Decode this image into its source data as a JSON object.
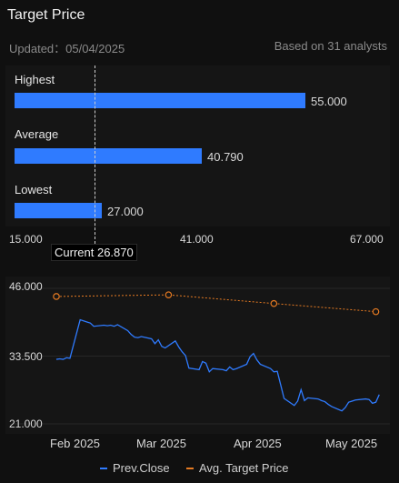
{
  "header": {
    "title": "Target Price",
    "updated": "Updated：05/04/2025",
    "analysts": "Based on 31 analysts"
  },
  "targets": {
    "highest": {
      "label": "Highest",
      "value": "55.000"
    },
    "average": {
      "label": "Average",
      "value": "40.790"
    },
    "lowest": {
      "label": "Lowest",
      "value": "27.000"
    },
    "scale_ticks": [
      "15.000",
      "41.000",
      "67.000"
    ],
    "current_label": "Current 26.870"
  },
  "chart_data": {
    "type": "line",
    "x_ticks": [
      "Feb 2025",
      "Mar 2025",
      "Apr 2025",
      "May 2025"
    ],
    "y_ticks": [
      "46.000",
      "33.500",
      "21.000"
    ],
    "ylim": [
      21,
      46
    ],
    "series": [
      {
        "name": "Prev.Close",
        "color": "#2f7bff",
        "points": [
          [
            "2025-01-27",
            32.9
          ],
          [
            "2025-01-28",
            33.0
          ],
          [
            "2025-01-29",
            32.9
          ],
          [
            "2025-01-30",
            33.2
          ],
          [
            "2025-01-31",
            33.1
          ],
          [
            "2025-02-03",
            40.2
          ],
          [
            "2025-02-04",
            40.0
          ],
          [
            "2025-02-05",
            39.8
          ],
          [
            "2025-02-06",
            39.6
          ],
          [
            "2025-02-07",
            39.0
          ],
          [
            "2025-02-10",
            39.2
          ],
          [
            "2025-02-11",
            39.1
          ],
          [
            "2025-02-12",
            39.2
          ],
          [
            "2025-02-13",
            39.0
          ],
          [
            "2025-02-14",
            39.3
          ],
          [
            "2025-02-17",
            38.2
          ],
          [
            "2025-02-18",
            37.5
          ],
          [
            "2025-02-19",
            37.0
          ],
          [
            "2025-02-20",
            36.9
          ],
          [
            "2025-02-21",
            37.1
          ],
          [
            "2025-02-24",
            36.7
          ],
          [
            "2025-02-25",
            35.8
          ],
          [
            "2025-02-26",
            36.5
          ],
          [
            "2025-02-27",
            35.3
          ],
          [
            "2025-02-28",
            35.0
          ],
          [
            "2025-03-03",
            36.3
          ],
          [
            "2025-03-04",
            35.2
          ],
          [
            "2025-03-05",
            34.3
          ],
          [
            "2025-03-06",
            33.6
          ],
          [
            "2025-03-07",
            31.3
          ],
          [
            "2025-03-10",
            31.0
          ],
          [
            "2025-03-11",
            32.5
          ],
          [
            "2025-03-12",
            32.2
          ],
          [
            "2025-03-13",
            30.6
          ],
          [
            "2025-03-14",
            31.2
          ],
          [
            "2025-03-17",
            31.0
          ],
          [
            "2025-03-18",
            30.8
          ],
          [
            "2025-03-19",
            31.5
          ],
          [
            "2025-03-20",
            31.0
          ],
          [
            "2025-03-21",
            31.2
          ],
          [
            "2025-03-24",
            32.0
          ],
          [
            "2025-03-25",
            33.4
          ],
          [
            "2025-03-26",
            34.0
          ],
          [
            "2025-03-27",
            32.8
          ],
          [
            "2025-03-28",
            32.0
          ],
          [
            "2025-03-31",
            31.2
          ],
          [
            "2025-04-01",
            30.6
          ],
          [
            "2025-04-02",
            30.7
          ],
          [
            "2025-04-03",
            28.2
          ],
          [
            "2025-04-04",
            25.7
          ],
          [
            "2025-04-07",
            24.4
          ],
          [
            "2025-04-08",
            25.2
          ],
          [
            "2025-04-09",
            27.3
          ],
          [
            "2025-04-10",
            25.3
          ],
          [
            "2025-04-11",
            25.8
          ],
          [
            "2025-04-14",
            25.6
          ],
          [
            "2025-04-15",
            25.3
          ],
          [
            "2025-04-16",
            25.1
          ],
          [
            "2025-04-17",
            24.6
          ],
          [
            "2025-04-18",
            24.2
          ],
          [
            "2025-04-21",
            23.4
          ],
          [
            "2025-04-22",
            24.0
          ],
          [
            "2025-04-23",
            25.0
          ],
          [
            "2025-04-24",
            25.2
          ],
          [
            "2025-04-25",
            25.4
          ],
          [
            "2025-04-28",
            25.6
          ],
          [
            "2025-04-29",
            25.5
          ],
          [
            "2025-04-30",
            24.8
          ],
          [
            "2025-05-01",
            25.0
          ],
          [
            "2025-05-02",
            26.4
          ]
        ]
      },
      {
        "name": "Avg. Target Price",
        "color": "#e57a22",
        "markers": true,
        "points": [
          [
            "2025-01-27",
            44.5
          ],
          [
            "2025-03-01",
            44.8
          ],
          [
            "2025-04-01",
            43.2
          ],
          [
            "2025-05-01",
            41.7
          ]
        ]
      }
    ]
  }
}
